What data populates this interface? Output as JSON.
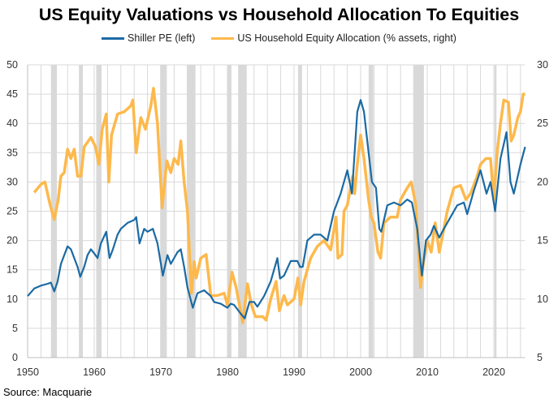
{
  "chart_data": {
    "type": "line",
    "title": "US Equity Valuations vs Household Allocation To Equities",
    "source": "Source: Macquarie",
    "legend_position": "top",
    "grid": true,
    "x_range": [
      1950,
      2024.7
    ],
    "x_ticks": [
      "1950",
      "1960",
      "1970",
      "1980",
      "1990",
      "2000",
      "2010",
      "2020"
    ],
    "y_left": {
      "range": [
        0,
        50
      ],
      "ticks": [
        "0",
        "5",
        "10",
        "15",
        "20",
        "25",
        "30",
        "35",
        "40",
        "45",
        "50"
      ]
    },
    "y_right": {
      "range": [
        5,
        30
      ],
      "ticks": [
        "5",
        "10",
        "15",
        "20",
        "25",
        "30"
      ]
    },
    "recession_shading": [
      [
        1953.5,
        1954.4
      ],
      [
        1957.7,
        1958.3
      ],
      [
        1960.3,
        1961.1
      ],
      [
        1969.9,
        1970.9
      ],
      [
        1973.9,
        1975.2
      ],
      [
        1980.0,
        1980.6
      ],
      [
        1981.6,
        1982.9
      ],
      [
        1990.6,
        1991.2
      ],
      [
        2001.2,
        2001.9
      ],
      [
        2007.9,
        2009.5
      ],
      [
        2020.1,
        2020.4
      ]
    ],
    "recession_color": "#d9d9d9",
    "series": [
      {
        "name": "Shiller PE (left)",
        "axis": "left",
        "color": "#1b6aa3",
        "x": [
          1950,
          1951,
          1952,
          1953,
          1953.5,
          1954,
          1954.5,
          1955,
          1955.5,
          1956,
          1956.5,
          1957,
          1957.5,
          1957.9,
          1958.5,
          1959,
          1959.5,
          1960,
          1960.5,
          1961,
          1961.8,
          1962.3,
          1962.8,
          1963.5,
          1964,
          1965,
          1966,
          1966.3,
          1966.8,
          1967.5,
          1968,
          1968.8,
          1969.5,
          1970.3,
          1971,
          1971.5,
          1972.5,
          1973,
          1973.5,
          1974,
          1974.8,
          1975.5,
          1976.5,
          1977.5,
          1978,
          1979,
          1980,
          1980.5,
          1981,
          1982,
          1982.6,
          1983.3,
          1984,
          1984.5,
          1985.5,
          1986.5,
          1987.5,
          1987.9,
          1988.5,
          1989.5,
          1990.5,
          1990.9,
          1991.3,
          1992,
          1993,
          1994,
          1995,
          1996,
          1997,
          1998,
          1998.7,
          1999.5,
          2000,
          2000.5,
          2001,
          2001.7,
          2002.3,
          2002.8,
          2003.1,
          2004,
          2005,
          2006,
          2007,
          2007.7,
          2008.5,
          2009.2,
          2009.8,
          2010.5,
          2011,
          2011.8,
          2012.5,
          2013.5,
          2014.5,
          2015.5,
          2016,
          2017,
          2018,
          2018.9,
          2019.5,
          2020.2,
          2021,
          2021.9,
          2022.5,
          2023,
          2023.5,
          2024,
          2024.7
        ],
        "values": [
          10.5,
          11.8,
          12.3,
          12.6,
          12.8,
          11.3,
          13,
          16,
          17.5,
          19,
          18.5,
          17,
          15.5,
          13.8,
          15.5,
          17.5,
          18.5,
          17.8,
          17,
          19.5,
          21.5,
          17,
          18.5,
          21,
          22,
          23,
          23.5,
          24,
          19.5,
          22,
          21.5,
          22,
          19.5,
          14,
          17.5,
          16,
          18,
          18.5,
          15.5,
          12,
          8.5,
          11,
          11.5,
          10.5,
          9.5,
          9.2,
          8.5,
          9.2,
          9,
          7.5,
          6.7,
          9.5,
          9.5,
          8.7,
          10.5,
          13,
          17,
          13.5,
          14,
          16.5,
          16.5,
          15.5,
          15.5,
          20,
          21,
          21,
          20,
          25,
          28,
          32,
          28,
          42,
          44,
          42,
          37,
          30,
          29,
          22,
          21.5,
          26,
          26.5,
          26,
          27,
          26.5,
          22,
          14,
          20,
          21,
          22.5,
          20.5,
          22,
          24,
          26,
          26.5,
          24.5,
          28.5,
          32,
          28,
          30,
          25,
          34,
          38.5,
          30,
          28,
          30.5,
          33,
          36
        ]
      },
      {
        "name": "US Household Equity Allocation (% assets, right)",
        "axis": "right",
        "color": "#fdb94c",
        "x": [
          1950,
          1950.9,
          1951,
          1952,
          1952.6,
          1953.4,
          1954,
          1954.6,
          1955,
          1955.5,
          1956,
          1956.5,
          1957,
          1957.5,
          1958,
          1958.5,
          1959.5,
          1960.2,
          1960.7,
          1961.2,
          1961.8,
          1962.2,
          1962.6,
          1963.5,
          1964.5,
          1965.5,
          1965.8,
          1966.3,
          1967,
          1967.7,
          1968.5,
          1968.9,
          1969.5,
          1970.2,
          1970.9,
          1971.5,
          1972,
          1972.6,
          1973,
          1973.5,
          1974,
          1974.6,
          1975,
          1975.3,
          1976,
          1976.8,
          1977.5,
          1978.5,
          1979.5,
          1980,
          1980.7,
          1981.3,
          1982.3,
          1983,
          1983.6,
          1984.2,
          1985.3,
          1985.8,
          1986.5,
          1987.3,
          1987.8,
          1988.5,
          1989,
          1990,
          1990.6,
          1991,
          1991.5,
          1992.5,
          1993.5,
          1994.5,
          1995.5,
          1996.3,
          1996.6,
          1997.2,
          1997.5,
          1998,
          1998.8,
          1999.1,
          1999.5,
          2000,
          2000.5,
          2001.2,
          2001.6,
          2002,
          2002.6,
          2003,
          2003.5,
          2004.5,
          2005.5,
          2006,
          2007,
          2007.6,
          2008.3,
          2009,
          2009.4,
          2010,
          2010.6,
          2011.2,
          2011.8,
          2012.5,
          2013,
          2014,
          2015,
          2015.8,
          2016.5,
          2017.5,
          2018,
          2018.8,
          2019.5,
          2020,
          2020.5,
          2021,
          2021.5,
          2022.2,
          2022.6,
          2023,
          2023.6,
          2024,
          2024.4,
          2024.7
        ],
        "values": [
          17.7,
          null,
          19.1,
          19.8,
          20,
          18,
          16.8,
          18.5,
          20.5,
          20.8,
          22.8,
          22,
          22.8,
          20.5,
          20.5,
          23,
          23.8,
          23,
          21.5,
          24.5,
          25.8,
          20,
          24,
          25.8,
          26,
          26.5,
          27,
          22.5,
          25.5,
          24.5,
          26.5,
          28,
          25,
          17.8,
          21.8,
          20.8,
          22,
          21.5,
          23.5,
          20,
          17.5,
          10.5,
          13.2,
          11.8,
          13.5,
          13.8,
          10.3,
          10.3,
          10.5,
          9.5,
          12.3,
          11,
          8,
          11.3,
          9.5,
          8.5,
          8.5,
          8.2,
          10,
          11.5,
          9,
          10.3,
          9.5,
          10,
          11.8,
          9.5,
          11.5,
          13.5,
          14.5,
          15,
          14.2,
          17,
          13.5,
          13.8,
          17.5,
          18,
          20.5,
          19,
          21.5,
          24,
          22,
          18.5,
          17,
          16.5,
          14,
          13.5,
          16.5,
          17,
          17,
          18.5,
          19.5,
          20,
          18,
          11,
          13,
          15,
          14,
          16.5,
          14,
          16,
          17.5,
          19.5,
          19.7,
          18.5,
          19,
          20.5,
          21.5,
          22,
          22,
          18.5,
          22.5,
          25,
          27,
          26.8,
          23.5,
          24,
          25.5,
          26,
          27.5,
          27.5
        ]
      }
    ]
  }
}
